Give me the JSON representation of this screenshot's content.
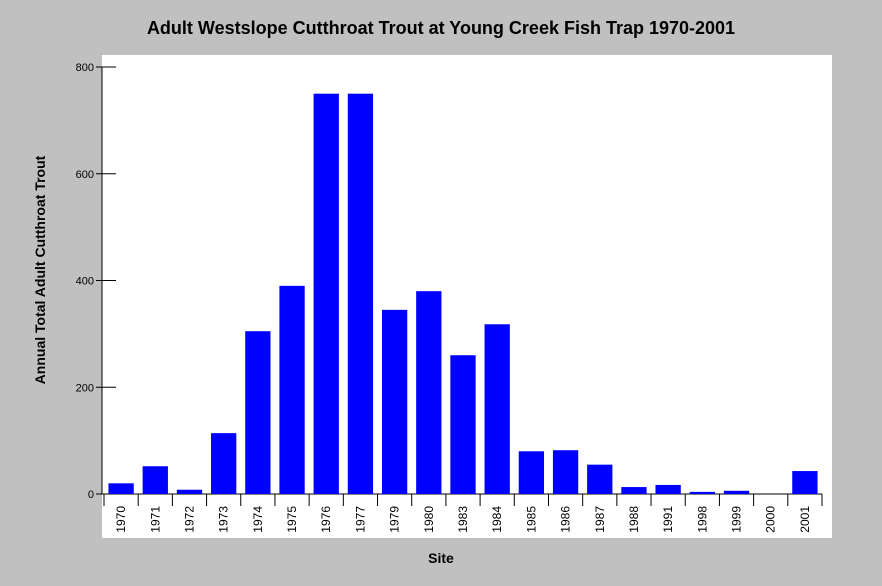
{
  "chart_data": {
    "type": "bar",
    "title": "Adult Westslope Cutthroat Trout at Young Creek Fish Trap 1970-2001",
    "xlabel": "Site",
    "ylabel": "Annual Total Adult Cutthroat Trout",
    "ylim": [
      0,
      800
    ],
    "yticks": [
      0,
      200,
      400,
      600,
      800
    ],
    "categories": [
      "1970",
      "1971",
      "1972",
      "1973",
      "1974",
      "1975",
      "1976",
      "1977",
      "1979",
      "1980",
      "1983",
      "1984",
      "1985",
      "1986",
      "1987",
      "1988",
      "1991",
      "1998",
      "1999",
      "2000",
      "2001"
    ],
    "values": [
      20,
      52,
      8,
      114,
      305,
      390,
      750,
      750,
      345,
      380,
      260,
      318,
      80,
      82,
      55,
      13,
      17,
      4,
      6,
      0,
      43
    ],
    "grid": false,
    "legend": "none",
    "bar_color": "#0000ff",
    "plot_background": "#ffffff",
    "figure_background": "#c0c0c0"
  }
}
